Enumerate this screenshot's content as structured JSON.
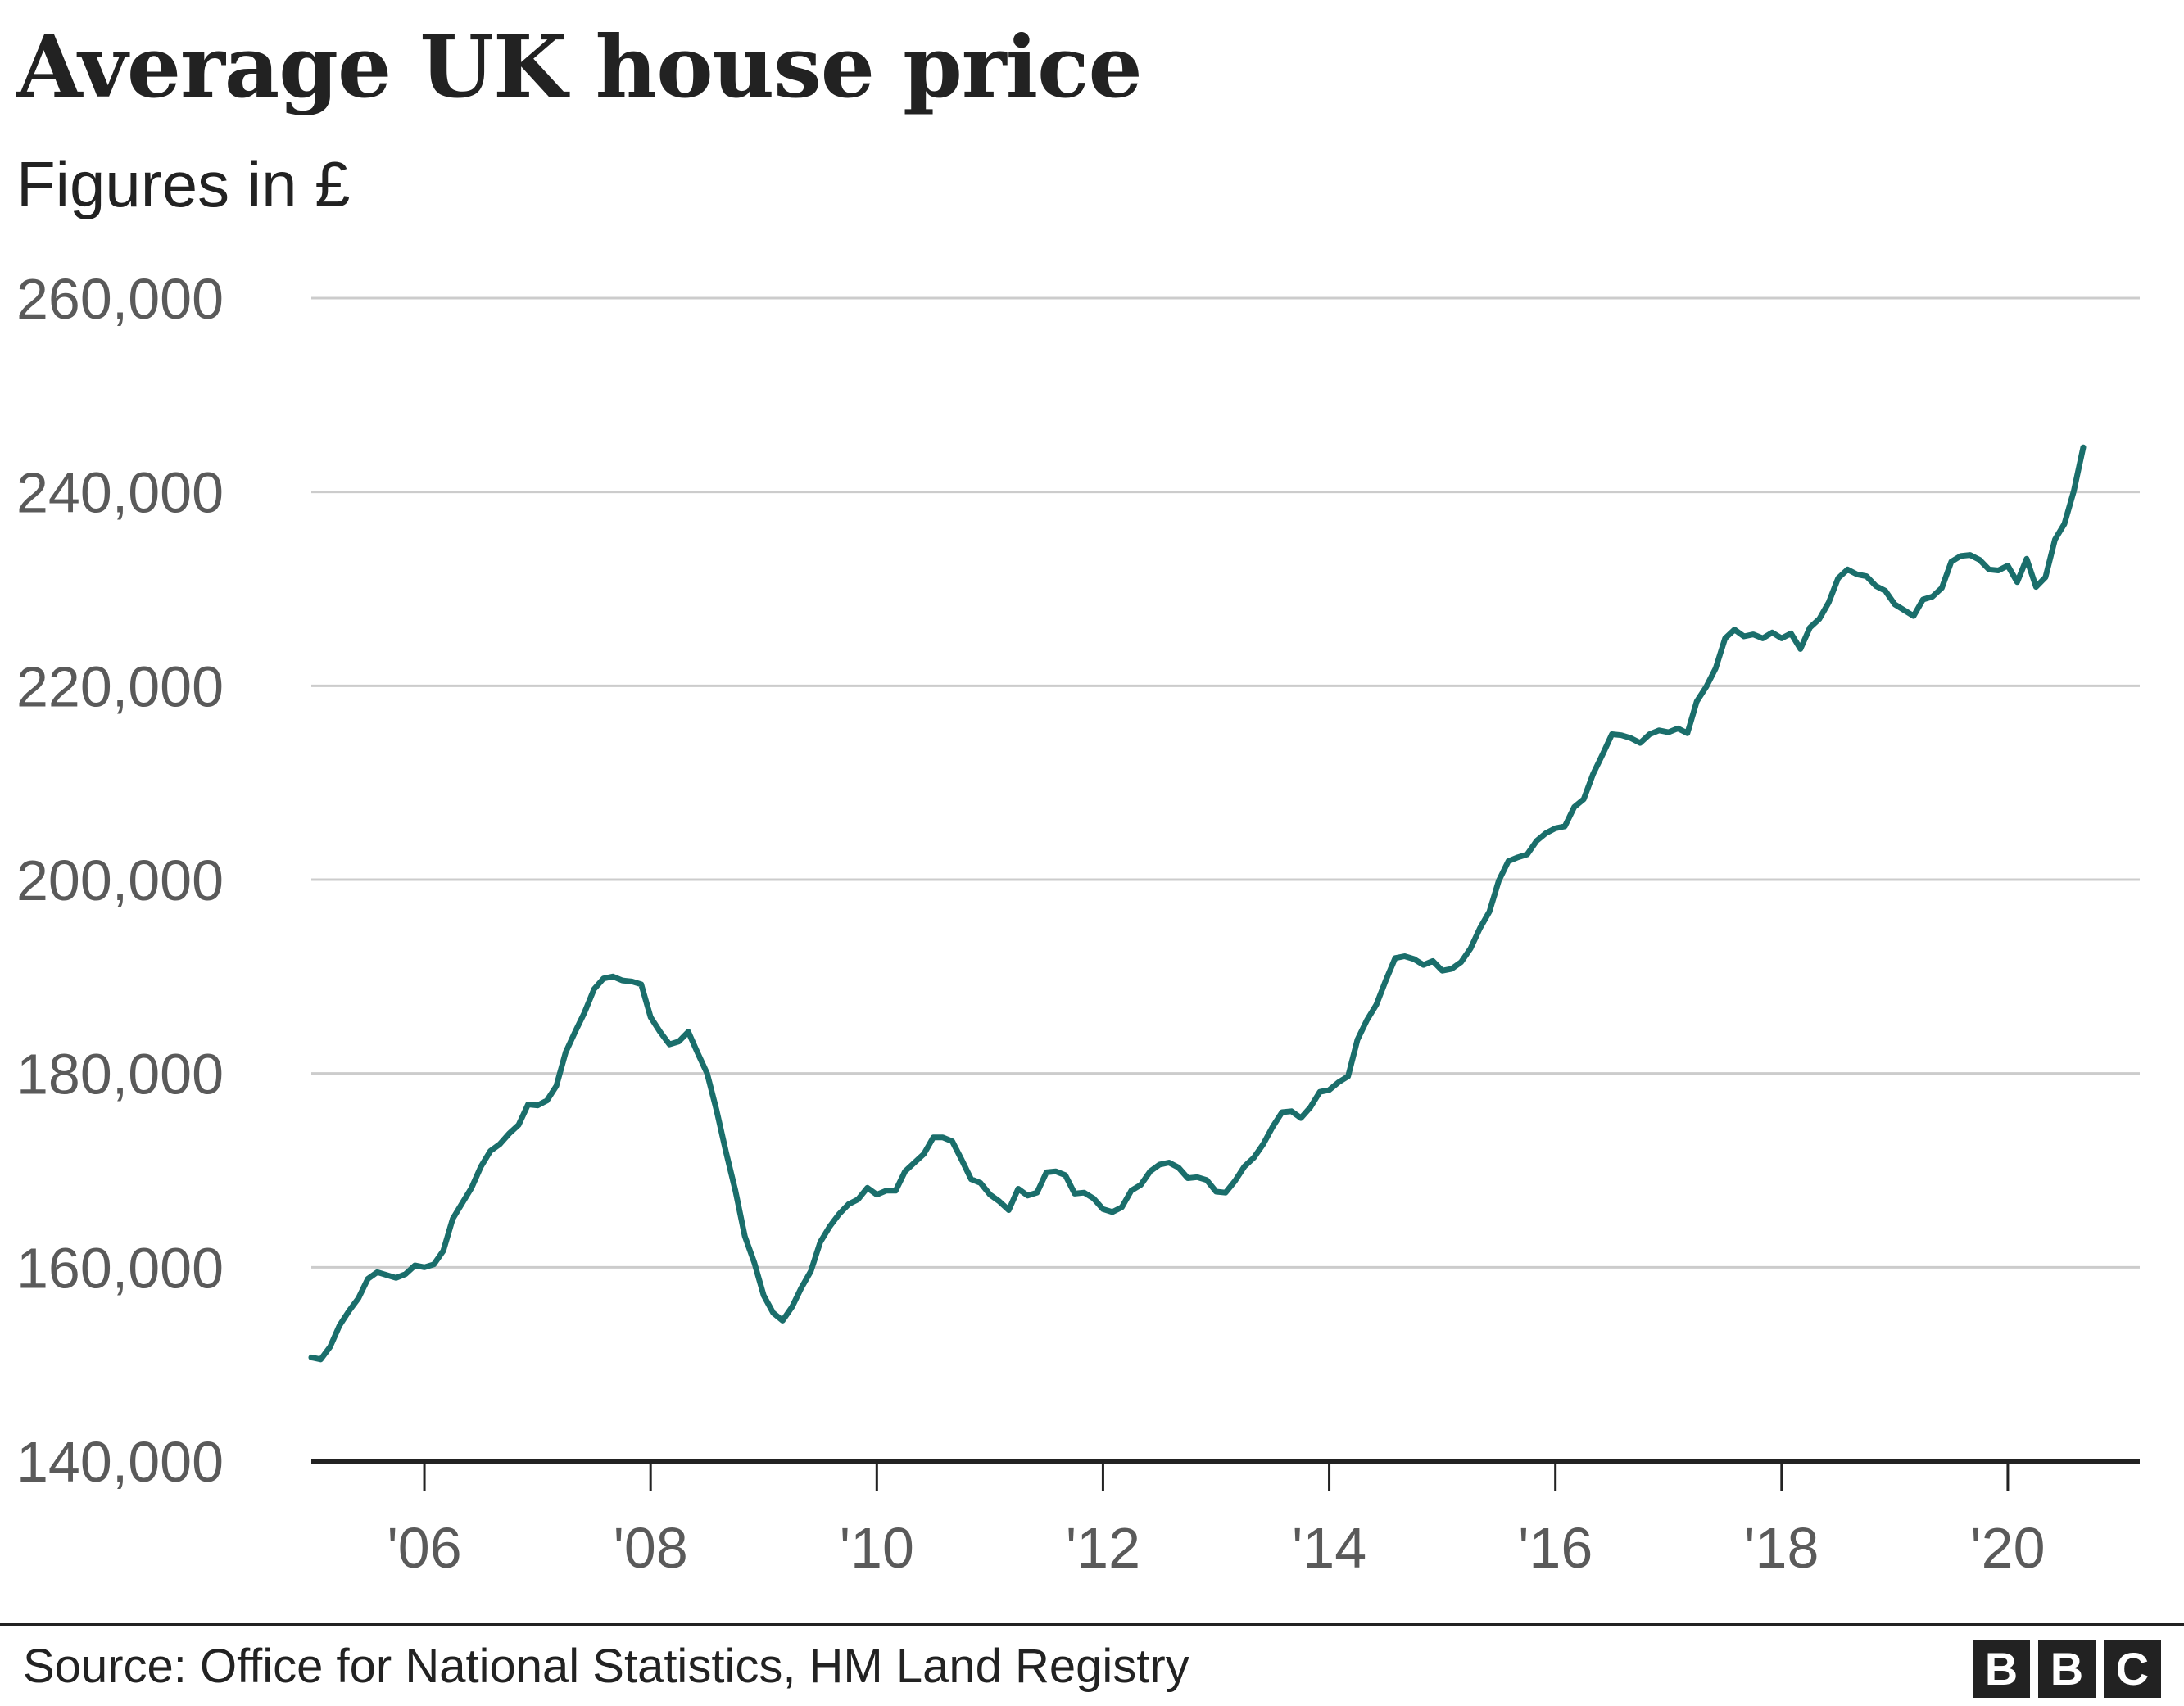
{
  "title": "Average UK house price",
  "subtitle": "Figures in £",
  "source": "Source: Office for National Statistics, HM Land Registry",
  "logo": [
    "B",
    "B",
    "C"
  ],
  "colors": {
    "line": "#1a6e6b",
    "grid": "#cccccc",
    "axis": "#222222",
    "tick_text": "#5a5a5a"
  },
  "chart_data": {
    "type": "line",
    "title": "Average UK house price",
    "subtitle": "Figures in £",
    "xlabel": "",
    "ylabel": "",
    "ylim": [
      140000,
      260000
    ],
    "xlim": [
      "2005-01",
      "2021-03"
    ],
    "yticks": [
      140000,
      160000,
      180000,
      200000,
      220000,
      240000,
      260000
    ],
    "ytick_labels": [
      "140,000",
      "160,000",
      "180,000",
      "200,000",
      "220,000",
      "240,000",
      "260,000"
    ],
    "xticks": [
      "2006-01",
      "2008-01",
      "2010-01",
      "2012-01",
      "2014-01",
      "2016-01",
      "2018-01",
      "2020-01"
    ],
    "xtick_labels": [
      "'06",
      "'08",
      "'10",
      "'12",
      "'14",
      "'16",
      "'18",
      "'20"
    ],
    "grid": true,
    "legend": "none",
    "series": [
      {
        "x": [
          "2005-01",
          "2005-02",
          "2005-03",
          "2005-04",
          "2005-05",
          "2005-06",
          "2005-07",
          "2005-08",
          "2005-09",
          "2005-10",
          "2005-11",
          "2005-12",
          "2006-01",
          "2006-02",
          "2006-03",
          "2006-04",
          "2006-05",
          "2006-06",
          "2006-07",
          "2006-08",
          "2006-09",
          "2006-10",
          "2006-11",
          "2006-12",
          "2007-01",
          "2007-02",
          "2007-03",
          "2007-04",
          "2007-05",
          "2007-06",
          "2007-07",
          "2007-08",
          "2007-09",
          "2007-10",
          "2007-11",
          "2007-12",
          "2008-01",
          "2008-02",
          "2008-03",
          "2008-04",
          "2008-05",
          "2008-06",
          "2008-07",
          "2008-08",
          "2008-09",
          "2008-10",
          "2008-11",
          "2008-12",
          "2009-01",
          "2009-02",
          "2009-03",
          "2009-04",
          "2009-05",
          "2009-06",
          "2009-07",
          "2009-08",
          "2009-09",
          "2009-10",
          "2009-11",
          "2009-12",
          "2010-01",
          "2010-02",
          "2010-03",
          "2010-04",
          "2010-05",
          "2010-06",
          "2010-07",
          "2010-08",
          "2010-09",
          "2010-10",
          "2010-11",
          "2010-12",
          "2011-01",
          "2011-02",
          "2011-03",
          "2011-04",
          "2011-05",
          "2011-06",
          "2011-07",
          "2011-08",
          "2011-09",
          "2011-10",
          "2011-11",
          "2011-12",
          "2012-01",
          "2012-02",
          "2012-03",
          "2012-04",
          "2012-05",
          "2012-06",
          "2012-07",
          "2012-08",
          "2012-09",
          "2012-10",
          "2012-11",
          "2012-12",
          "2013-01",
          "2013-02",
          "2013-03",
          "2013-04",
          "2013-05",
          "2013-06",
          "2013-07",
          "2013-08",
          "2013-09",
          "2013-10",
          "2013-11",
          "2013-12",
          "2014-01",
          "2014-02",
          "2014-03",
          "2014-04",
          "2014-05",
          "2014-06",
          "2014-07",
          "2014-08",
          "2014-09",
          "2014-10",
          "2014-11",
          "2014-12",
          "2015-01",
          "2015-02",
          "2015-03",
          "2015-04",
          "2015-05",
          "2015-06",
          "2015-07",
          "2015-08",
          "2015-09",
          "2015-10",
          "2015-11",
          "2015-12",
          "2016-01",
          "2016-02",
          "2016-03",
          "2016-04",
          "2016-05",
          "2016-06",
          "2016-07",
          "2016-08",
          "2016-09",
          "2016-10",
          "2016-11",
          "2016-12",
          "2017-01",
          "2017-02",
          "2017-03",
          "2017-04",
          "2017-05",
          "2017-06",
          "2017-07",
          "2017-08",
          "2017-09",
          "2017-10",
          "2017-11",
          "2017-12",
          "2018-01",
          "2018-02",
          "2018-03",
          "2018-04",
          "2018-05",
          "2018-06",
          "2018-07",
          "2018-08",
          "2018-09",
          "2018-10",
          "2018-11",
          "2018-12",
          "2019-01",
          "2019-02",
          "2019-03",
          "2019-04",
          "2019-05",
          "2019-06",
          "2019-07",
          "2019-08",
          "2019-09",
          "2019-10",
          "2019-11",
          "2019-12",
          "2020-01",
          "2020-02",
          "2020-03",
          "2020-04",
          "2020-05",
          "2020-06",
          "2020-07",
          "2020-08",
          "2020-09"
        ],
        "values": [
          150700,
          150500,
          151800,
          154000,
          155500,
          156800,
          158800,
          159500,
          159200,
          158900,
          159300,
          160200,
          160000,
          160300,
          161700,
          165000,
          166600,
          168200,
          170400,
          172000,
          172700,
          173800,
          174700,
          176800,
          176700,
          177200,
          178700,
          182200,
          184300,
          186300,
          188700,
          189800,
          190000,
          189600,
          189500,
          189200,
          185800,
          184300,
          183000,
          183300,
          184300,
          182100,
          180000,
          176200,
          171900,
          167900,
          163200,
          160500,
          157100,
          155300,
          154500,
          155900,
          157900,
          159600,
          162600,
          164200,
          165500,
          166500,
          167000,
          168200,
          167500,
          167900,
          167900,
          169900,
          170800,
          171700,
          173400,
          173400,
          173000,
          171100,
          169100,
          168700,
          167500,
          166800,
          165900,
          168100,
          167400,
          167700,
          169800,
          169900,
          169500,
          167600,
          167700,
          167100,
          166000,
          165700,
          166200,
          167900,
          168500,
          169900,
          170600,
          170800,
          170300,
          169200,
          169300,
          169000,
          167800,
          167700,
          168900,
          170400,
          171300,
          172700,
          174500,
          176000,
          176100,
          175400,
          176500,
          178100,
          178300,
          179100,
          179700,
          183500,
          185500,
          187100,
          189600,
          191900,
          192100,
          191800,
          191200,
          191600,
          190600,
          190800,
          191500,
          192900,
          195000,
          196700,
          199900,
          201900,
          202300,
          202600,
          204000,
          204800,
          205300,
          205500,
          207500,
          208300,
          210900,
          212900,
          215000,
          214900,
          214600,
          214100,
          215000,
          215400,
          215200,
          215600,
          215100,
          218400,
          219900,
          221800,
          224900,
          225800,
          225100,
          225300,
          224900,
          225500,
          224900,
          225400,
          223800,
          226000,
          226900,
          228600,
          231100,
          232000,
          231500,
          231300,
          230300,
          229800,
          228400,
          227800,
          227200,
          228900,
          229200,
          230100,
          232800,
          233400,
          233500,
          233000,
          232000,
          231900,
          232400,
          230700,
          233100,
          230200,
          231200,
          235100,
          236700,
          240100,
          244600
        ]
      }
    ]
  }
}
